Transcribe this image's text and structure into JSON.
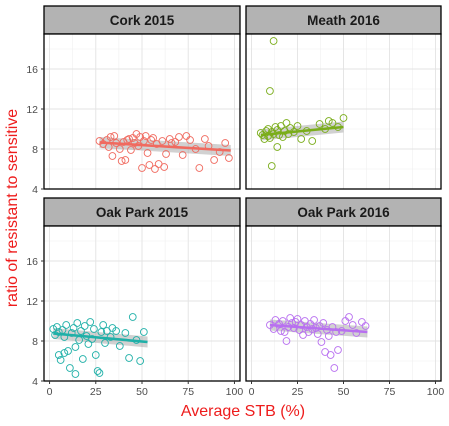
{
  "chart_data": {
    "type": "scatter",
    "layout": "facet-grid 2x2",
    "xlabel": "Average STB (%)",
    "ylabel": "ratio of resistant to sensitive",
    "axis_label_color": "#ee1c1c",
    "x_ticks": [
      0,
      25,
      50,
      75,
      100
    ],
    "y_ticks": [
      4,
      8,
      12,
      16
    ],
    "xlim": [
      -3,
      103
    ],
    "ylim": [
      4,
      19.5
    ],
    "grid": true,
    "legend": "none",
    "trend": "linear regression with 95% confidence band",
    "panels": [
      {
        "title": "Cork 2015",
        "color": "#f06a5f",
        "fit": {
          "x": [
            27,
            98
          ],
          "y": [
            8.65,
            7.85
          ]
        },
        "points": [
          {
            "x": 27,
            "y": 8.8
          },
          {
            "x": 29,
            "y": 8.5
          },
          {
            "x": 31,
            "y": 8.9
          },
          {
            "x": 32,
            "y": 8.2
          },
          {
            "x": 33,
            "y": 9.2
          },
          {
            "x": 34,
            "y": 7.3
          },
          {
            "x": 35,
            "y": 9.3
          },
          {
            "x": 36,
            "y": 8.6
          },
          {
            "x": 38,
            "y": 8.0
          },
          {
            "x": 39,
            "y": 6.8
          },
          {
            "x": 40,
            "y": 8.7
          },
          {
            "x": 41,
            "y": 6.9
          },
          {
            "x": 42,
            "y": 8.9
          },
          {
            "x": 43,
            "y": 9.0
          },
          {
            "x": 44,
            "y": 7.9
          },
          {
            "x": 45,
            "y": 9.1
          },
          {
            "x": 46,
            "y": 8.6
          },
          {
            "x": 47,
            "y": 9.5
          },
          {
            "x": 48,
            "y": 8.3
          },
          {
            "x": 49,
            "y": 9.2
          },
          {
            "x": 50,
            "y": 6.1
          },
          {
            "x": 51,
            "y": 8.8
          },
          {
            "x": 52,
            "y": 9.3
          },
          {
            "x": 53,
            "y": 7.6
          },
          {
            "x": 54,
            "y": 6.4
          },
          {
            "x": 55,
            "y": 8.9
          },
          {
            "x": 56,
            "y": 9.1
          },
          {
            "x": 57,
            "y": 6.0
          },
          {
            "x": 58,
            "y": 8.5
          },
          {
            "x": 59,
            "y": 6.5
          },
          {
            "x": 61,
            "y": 8.8
          },
          {
            "x": 62,
            "y": 6.2
          },
          {
            "x": 63,
            "y": 7.5
          },
          {
            "x": 65,
            "y": 9.0
          },
          {
            "x": 66,
            "y": 8.6
          },
          {
            "x": 68,
            "y": 8.7
          },
          {
            "x": 70,
            "y": 9.2
          },
          {
            "x": 72,
            "y": 7.4
          },
          {
            "x": 74,
            "y": 9.3
          },
          {
            "x": 76,
            "y": 8.9
          },
          {
            "x": 79,
            "y": 8.0
          },
          {
            "x": 81,
            "y": 6.1
          },
          {
            "x": 84,
            "y": 9.0
          },
          {
            "x": 86,
            "y": 8.3
          },
          {
            "x": 89,
            "y": 6.9
          },
          {
            "x": 92,
            "y": 7.7
          },
          {
            "x": 95,
            "y": 8.6
          },
          {
            "x": 97,
            "y": 7.1
          }
        ]
      },
      {
        "title": "Meath 2016",
        "color": "#7aad1a",
        "fit": {
          "x": [
            5,
            50
          ],
          "y": [
            9.4,
            10.2
          ]
        },
        "points": [
          {
            "x": 5,
            "y": 9.6
          },
          {
            "x": 6,
            "y": 9.4
          },
          {
            "x": 7,
            "y": 9.0
          },
          {
            "x": 8,
            "y": 9.8
          },
          {
            "x": 9,
            "y": 9.3
          },
          {
            "x": 9,
            "y": 10.0
          },
          {
            "x": 10,
            "y": 9.1
          },
          {
            "x": 10,
            "y": 13.8
          },
          {
            "x": 11,
            "y": 9.7
          },
          {
            "x": 11,
            "y": 6.3
          },
          {
            "x": 12,
            "y": 18.8
          },
          {
            "x": 12,
            "y": 9.5
          },
          {
            "x": 13,
            "y": 10.2
          },
          {
            "x": 14,
            "y": 8.2
          },
          {
            "x": 14,
            "y": 9.9
          },
          {
            "x": 15,
            "y": 9.4
          },
          {
            "x": 16,
            "y": 10.3
          },
          {
            "x": 17,
            "y": 9.2
          },
          {
            "x": 18,
            "y": 9.8
          },
          {
            "x": 19,
            "y": 10.6
          },
          {
            "x": 20,
            "y": 9.5
          },
          {
            "x": 21,
            "y": 10.1
          },
          {
            "x": 23,
            "y": 9.7
          },
          {
            "x": 25,
            "y": 10.3
          },
          {
            "x": 27,
            "y": 9.0
          },
          {
            "x": 30,
            "y": 9.8
          },
          {
            "x": 33,
            "y": 8.8
          },
          {
            "x": 37,
            "y": 10.5
          },
          {
            "x": 40,
            "y": 10.0
          },
          {
            "x": 42,
            "y": 10.8
          },
          {
            "x": 44,
            "y": 10.6
          },
          {
            "x": 47,
            "y": 10.2
          },
          {
            "x": 50,
            "y": 11.1
          }
        ]
      },
      {
        "title": "Oak Park 2015",
        "color": "#1fb0a8",
        "fit": {
          "x": [
            2,
            53
          ],
          "y": [
            8.75,
            7.9
          ]
        },
        "points": [
          {
            "x": 2,
            "y": 9.2
          },
          {
            "x": 3,
            "y": 8.6
          },
          {
            "x": 4,
            "y": 9.4
          },
          {
            "x": 5,
            "y": 6.6
          },
          {
            "x": 5,
            "y": 8.9
          },
          {
            "x": 6,
            "y": 6.1
          },
          {
            "x": 7,
            "y": 9.1
          },
          {
            "x": 8,
            "y": 6.8
          },
          {
            "x": 8,
            "y": 8.4
          },
          {
            "x": 9,
            "y": 9.6
          },
          {
            "x": 10,
            "y": 7.0
          },
          {
            "x": 11,
            "y": 5.3
          },
          {
            "x": 12,
            "y": 8.8
          },
          {
            "x": 13,
            "y": 9.3
          },
          {
            "x": 14,
            "y": 7.4
          },
          {
            "x": 14,
            "y": 4.7
          },
          {
            "x": 15,
            "y": 9.8
          },
          {
            "x": 16,
            "y": 8.1
          },
          {
            "x": 17,
            "y": 9.0
          },
          {
            "x": 18,
            "y": 6.2
          },
          {
            "x": 19,
            "y": 9.5
          },
          {
            "x": 20,
            "y": 8.5
          },
          {
            "x": 21,
            "y": 7.7
          },
          {
            "x": 22,
            "y": 9.9
          },
          {
            "x": 23,
            "y": 8.2
          },
          {
            "x": 24,
            "y": 9.2
          },
          {
            "x": 25,
            "y": 6.6
          },
          {
            "x": 26,
            "y": 5.0
          },
          {
            "x": 27,
            "y": 4.8
          },
          {
            "x": 28,
            "y": 8.9
          },
          {
            "x": 29,
            "y": 9.6
          },
          {
            "x": 30,
            "y": 7.8
          },
          {
            "x": 31,
            "y": 9.0
          },
          {
            "x": 33,
            "y": 8.4
          },
          {
            "x": 34,
            "y": 9.3
          },
          {
            "x": 36,
            "y": 9.0
          },
          {
            "x": 38,
            "y": 7.5
          },
          {
            "x": 41,
            "y": 8.8
          },
          {
            "x": 43,
            "y": 6.3
          },
          {
            "x": 45,
            "y": 10.4
          },
          {
            "x": 47,
            "y": 8.1
          },
          {
            "x": 49,
            "y": 6.0
          },
          {
            "x": 51,
            "y": 8.9
          }
        ]
      },
      {
        "title": "Oak Park 2016",
        "color": "#b86ff0",
        "fit": {
          "x": [
            10,
            63
          ],
          "y": [
            9.6,
            8.9
          ]
        },
        "points": [
          {
            "x": 10,
            "y": 9.6
          },
          {
            "x": 12,
            "y": 9.2
          },
          {
            "x": 13,
            "y": 10.1
          },
          {
            "x": 15,
            "y": 9.7
          },
          {
            "x": 16,
            "y": 9.0
          },
          {
            "x": 17,
            "y": 10.0
          },
          {
            "x": 18,
            "y": 8.9
          },
          {
            "x": 19,
            "y": 8.0
          },
          {
            "x": 20,
            "y": 9.4
          },
          {
            "x": 21,
            "y": 10.3
          },
          {
            "x": 22,
            "y": 9.8
          },
          {
            "x": 23,
            "y": 9.3
          },
          {
            "x": 24,
            "y": 9.9
          },
          {
            "x": 25,
            "y": 10.2
          },
          {
            "x": 26,
            "y": 9.1
          },
          {
            "x": 27,
            "y": 9.6
          },
          {
            "x": 28,
            "y": 8.6
          },
          {
            "x": 29,
            "y": 10.0
          },
          {
            "x": 30,
            "y": 9.4
          },
          {
            "x": 31,
            "y": 8.9
          },
          {
            "x": 32,
            "y": 9.7
          },
          {
            "x": 33,
            "y": 9.2
          },
          {
            "x": 34,
            "y": 10.1
          },
          {
            "x": 35,
            "y": 9.3
          },
          {
            "x": 36,
            "y": 8.7
          },
          {
            "x": 37,
            "y": 9.5
          },
          {
            "x": 38,
            "y": 7.9
          },
          {
            "x": 39,
            "y": 9.8
          },
          {
            "x": 40,
            "y": 6.9
          },
          {
            "x": 41,
            "y": 9.1
          },
          {
            "x": 42,
            "y": 8.5
          },
          {
            "x": 43,
            "y": 6.6
          },
          {
            "x": 44,
            "y": 9.4
          },
          {
            "x": 45,
            "y": 5.3
          },
          {
            "x": 46,
            "y": 8.9
          },
          {
            "x": 47,
            "y": 7.1
          },
          {
            "x": 49,
            "y": 9.0
          },
          {
            "x": 51,
            "y": 10.0
          },
          {
            "x": 53,
            "y": 10.4
          },
          {
            "x": 55,
            "y": 9.6
          },
          {
            "x": 57,
            "y": 8.8
          },
          {
            "x": 60,
            "y": 9.9
          },
          {
            "x": 62,
            "y": 9.5
          }
        ]
      }
    ]
  }
}
